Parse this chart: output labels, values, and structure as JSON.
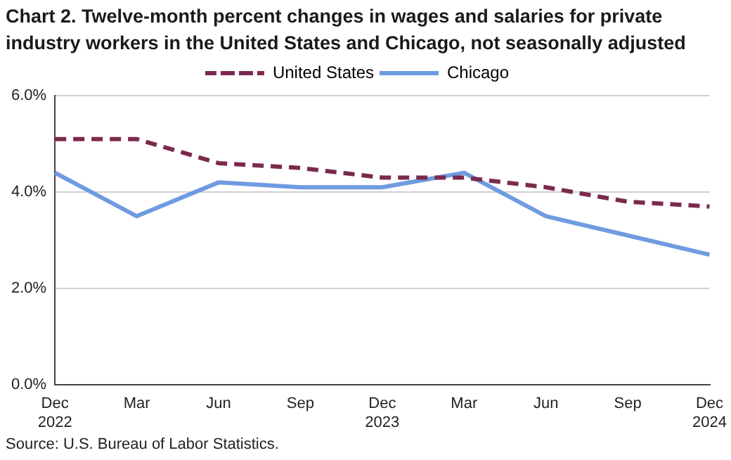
{
  "chart_data": {
    "type": "line",
    "title": "Chart 2. Twelve-month percent changes in wages and salaries for private industry workers in the United States and Chicago, not seasonally adjusted",
    "categories": [
      "Dec\n2022",
      "Mar",
      "Jun",
      "Sep",
      "Dec\n2023",
      "Mar",
      "Jun",
      "Sep",
      "Dec\n2024"
    ],
    "series": [
      {
        "name": "United States",
        "color": "#7b2a4e",
        "line_style": "dashed",
        "values": [
          5.1,
          5.1,
          4.6,
          4.5,
          4.3,
          4.3,
          4.1,
          3.8,
          3.7
        ]
      },
      {
        "name": "Chicago",
        "color": "#6f9be0",
        "line_style": "solid",
        "values": [
          4.4,
          3.5,
          4.2,
          4.1,
          4.1,
          4.4,
          3.5,
          3.1,
          2.7
        ]
      }
    ],
    "ylim": [
      0,
      6
    ],
    "yticks": [
      {
        "value": 0,
        "label": "0.0%"
      },
      {
        "value": 2,
        "label": "2.0%"
      },
      {
        "value": 4,
        "label": "4.0%"
      },
      {
        "value": 6,
        "label": "6.0%"
      }
    ],
    "grid": "y",
    "legend": "top",
    "marker": "none",
    "annotations": [
      "Source: U.S. Bureau of Labor Statistics."
    ]
  }
}
